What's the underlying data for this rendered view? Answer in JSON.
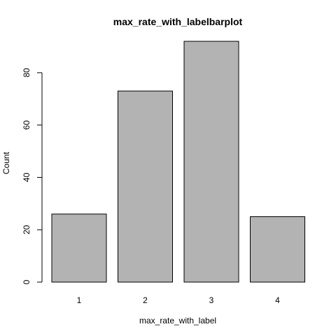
{
  "chart_data": {
    "type": "bar",
    "title": "max_rate_with_labelbarplot",
    "xlabel": "max_rate_with_label",
    "ylabel": "Count",
    "categories": [
      "1",
      "2",
      "3",
      "4"
    ],
    "values": [
      26,
      73,
      92,
      25
    ],
    "ylim": [
      0,
      92
    ],
    "yticks": [
      0,
      20,
      40,
      60,
      80
    ],
    "bar_color": "#b3b3b3",
    "bar_border_color": "#000000",
    "grid": false,
    "legend": "none"
  }
}
